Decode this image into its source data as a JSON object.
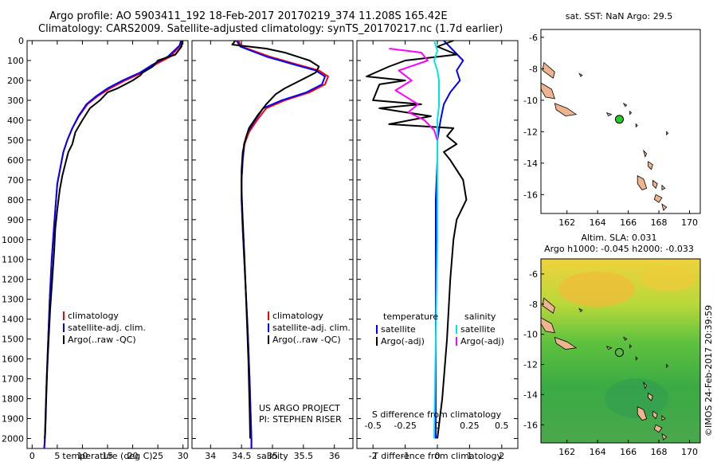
{
  "header": {
    "line1": "Argo profile: AO 5903411_192 18-Feb-2017 20170219_374 11.208S 165.42E",
    "line2": "Climatology: CARS2009. Satellite-adjusted climatology: synTS_20170217.nc (1.7d earlier)"
  },
  "stamp": "©IMOS 24-Feb-2017 20:39:59",
  "colors": {
    "climatology": "#ff0000",
    "satellite": "#0000ff",
    "argo": "#000000",
    "satellite_salinity": "#00e5e5",
    "argo_salinity": "#ff00ff",
    "land": "#eeb38f",
    "float_marker": "#22cc22"
  },
  "chart_data": [
    {
      "type": "line",
      "id": "temperature",
      "xlabel": "temperature (deg C)",
      "xlim": [
        -1,
        31
      ],
      "xticks": [
        "0",
        "5",
        "10",
        "15",
        "20",
        "25",
        "30"
      ],
      "xtick_values": [
        0,
        5,
        10,
        15,
        20,
        25,
        30
      ],
      "ylim": [
        0,
        2050
      ],
      "ytick_values": [
        0,
        100,
        200,
        300,
        400,
        500,
        600,
        700,
        800,
        900,
        1000,
        1100,
        1200,
        1300,
        1400,
        1500,
        1600,
        1700,
        1800,
        1900,
        2000
      ],
      "yticks": [
        "0",
        "100",
        "200",
        "300",
        "400",
        "500",
        "600",
        "700",
        "800",
        "900",
        "1000",
        "1100",
        "1200",
        "1300",
        "1400",
        "1500",
        "1600",
        "1700",
        "1800",
        "1900",
        "2000"
      ],
      "legend": [
        "climatology",
        "satellite-adj. clim.",
        "Argo(..raw -QC)"
      ],
      "series": [
        {
          "name": "climatology",
          "color": "climatology",
          "x": [
            29.8,
            29.5,
            27.5,
            24.5,
            22.0,
            18.5,
            15.5,
            13.0,
            11.0,
            9.3,
            8.0,
            7.0,
            6.2,
            5.6,
            5.0,
            4.7,
            4.4,
            3.9,
            3.5,
            3.2,
            2.9,
            2.7,
            2.6,
            2.5,
            2.4
          ],
          "y": [
            0,
            25,
            80,
            120,
            160,
            200,
            240,
            280,
            320,
            380,
            440,
            500,
            560,
            640,
            720,
            820,
            920,
            1100,
            1300,
            1500,
            1700,
            1850,
            1950,
            2020,
            2050
          ]
        },
        {
          "name": "satellite-adj. clim.",
          "color": "satellite",
          "x": [
            29.6,
            29.3,
            27.0,
            24.0,
            21.5,
            18.0,
            15.0,
            12.7,
            10.8,
            9.2,
            8.0,
            7.0,
            6.2,
            5.6,
            5.0,
            4.7,
            4.4,
            3.9,
            3.5,
            3.2,
            2.9,
            2.7,
            2.6,
            2.5,
            2.4
          ],
          "y": [
            0,
            25,
            80,
            120,
            160,
            200,
            240,
            280,
            320,
            380,
            440,
            500,
            560,
            640,
            720,
            820,
            920,
            1100,
            1300,
            1500,
            1700,
            1850,
            1950,
            2020,
            2050
          ]
        },
        {
          "name": "Argo(..raw -QC)",
          "color": "argo",
          "x": [
            29.9,
            29.7,
            28.5,
            25.0,
            24.0,
            22.0,
            21.5,
            20.0,
            17.0,
            15.0,
            13.5,
            12.5,
            11.5,
            10.0,
            8.6,
            8.0,
            7.2,
            6.8,
            6.0,
            5.5,
            5.0,
            4.6,
            4.4,
            4.0,
            3.6,
            3.3,
            3.0,
            2.8,
            2.7,
            2.6,
            2.5
          ],
          "y": [
            0,
            30,
            70,
            100,
            130,
            160,
            175,
            200,
            240,
            260,
            300,
            320,
            340,
            400,
            460,
            520,
            560,
            600,
            680,
            750,
            850,
            950,
            1050,
            1200,
            1350,
            1500,
            1650,
            1800,
            1900,
            1980,
            2000
          ]
        }
      ]
    },
    {
      "type": "line",
      "id": "salinity",
      "xlabel": "salinity",
      "xlim": [
        33.7,
        36.3
      ],
      "xticks": [
        "34",
        "34.5",
        "35",
        "35.5",
        "36"
      ],
      "xtick_values": [
        34,
        34.5,
        35,
        35.5,
        36
      ],
      "ylim": [
        0,
        2050
      ],
      "legend": [
        "climatology",
        "satellite-adj. clim.",
        "Argo(..raw -QC)"
      ],
      "annotation": [
        "US ARGO PROJECT",
        "PI: STEPHEN RISER"
      ],
      "series": [
        {
          "name": "climatology",
          "color": "climatology",
          "x": [
            34.45,
            34.5,
            34.95,
            35.4,
            35.75,
            35.9,
            35.85,
            35.6,
            35.2,
            34.9,
            34.75,
            34.62,
            34.55,
            34.52,
            34.5,
            34.5,
            34.52,
            34.56,
            34.6,
            34.63,
            34.65,
            34.66,
            34.66
          ],
          "y": [
            0,
            30,
            80,
            120,
            150,
            180,
            220,
            260,
            300,
            340,
            400,
            460,
            520,
            600,
            700,
            800,
            950,
            1200,
            1450,
            1700,
            1900,
            2000,
            2050
          ]
        },
        {
          "name": "satellite-adj. clim.",
          "color": "satellite",
          "x": [
            34.42,
            34.48,
            34.9,
            35.35,
            35.7,
            35.85,
            35.8,
            35.55,
            35.15,
            34.85,
            34.72,
            34.6,
            34.54,
            34.52,
            34.5,
            34.5,
            34.52,
            34.56,
            34.6,
            34.63,
            34.65,
            34.66,
            34.66
          ],
          "y": [
            0,
            30,
            80,
            120,
            150,
            180,
            220,
            260,
            300,
            340,
            400,
            460,
            520,
            600,
            700,
            800,
            950,
            1200,
            1450,
            1700,
            1900,
            2000,
            2050
          ]
        },
        {
          "name": "Argo(..raw -QC)",
          "color": "argo",
          "x": [
            34.4,
            34.35,
            34.9,
            35.2,
            35.6,
            35.75,
            35.7,
            35.45,
            35.2,
            35.05,
            34.9,
            34.75,
            34.62,
            34.56,
            34.52,
            34.5,
            34.5,
            34.52,
            34.55,
            34.58,
            34.61,
            34.63,
            34.64
          ],
          "y": [
            0,
            20,
            40,
            60,
            100,
            130,
            160,
            200,
            240,
            270,
            320,
            380,
            440,
            500,
            560,
            650,
            750,
            900,
            1100,
            1350,
            1600,
            1850,
            2000
          ]
        }
      ]
    },
    {
      "type": "line",
      "id": "difference",
      "xlabel": "T difference from climatology",
      "xlim": [
        -2.5,
        2.5
      ],
      "xticks": [
        "-2",
        "-1",
        "0",
        "1",
        "2"
      ],
      "xtick_values": [
        -2,
        -1,
        0,
        1,
        2
      ],
      "sticks": [
        "-0.5",
        "-0.25",
        "0",
        "0.25",
        "0.5"
      ],
      "stick_values": [
        -2,
        -1,
        0,
        1,
        2
      ],
      "s_label": "S difference from climatology",
      "ylim": [
        0,
        2050
      ],
      "legend_titles": [
        "temperature",
        "salinity"
      ],
      "legend": [
        "satellite",
        "Argo(-adj)",
        "satellite",
        "Argo(-adj)"
      ],
      "series": [
        {
          "name": "satellite",
          "quantity": "temperature",
          "color": "satellite",
          "x": [
            0.2,
            0.5,
            0.8,
            0.6,
            0.7,
            0.4,
            0.2,
            0.1,
            0.0,
            0.0,
            -0.05,
            -0.05,
            -0.05,
            -0.05,
            -0.05
          ],
          "y": [
            0,
            50,
            100,
            150,
            200,
            260,
            320,
            400,
            500,
            600,
            800,
            1000,
            1300,
            1600,
            2000
          ]
        },
        {
          "name": "Argo(-adj)",
          "quantity": "temperature",
          "color": "argo",
          "x": [
            0.5,
            0.0,
            0.6,
            -1.0,
            -1.5,
            -2.2,
            -1.0,
            -1.8,
            -2.0,
            -0.5,
            -1.8,
            -0.2,
            -1.5,
            0.5,
            0.3,
            0.6,
            0.2,
            0.4,
            0.8,
            0.9,
            0.6,
            0.5,
            0.4,
            0.3,
            0.15,
            0.0
          ],
          "y": [
            0,
            30,
            70,
            100,
            130,
            180,
            200,
            220,
            300,
            320,
            340,
            380,
            420,
            440,
            480,
            520,
            560,
            600,
            700,
            800,
            900,
            1000,
            1200,
            1500,
            1800,
            2000
          ]
        },
        {
          "name": "satellite",
          "quantity": "salinity",
          "color": "satellite_salinity",
          "x": [
            -0.1,
            0.0,
            -0.1,
            0.0,
            0.05,
            0.05,
            0.05,
            0.0,
            0.0,
            0.0,
            -0.05,
            -0.1
          ],
          "y": [
            0,
            50,
            100,
            150,
            200,
            260,
            330,
            400,
            600,
            1000,
            1500,
            2000
          ]
        },
        {
          "name": "Argo(-adj)",
          "quantity": "salinity",
          "color": "argo_salinity",
          "x": [
            -1.5,
            -0.5,
            -0.3,
            -1.2,
            -0.8,
            -1.3,
            -0.6,
            -0.9,
            -0.4,
            -0.1,
            0.0
          ],
          "y": [
            40,
            60,
            100,
            150,
            200,
            250,
            320,
            360,
            400,
            450,
            500
          ]
        }
      ]
    },
    {
      "type": "scatter",
      "id": "sst_map",
      "title": "sat. SST: NaN Argo: 29.5",
      "xlim": [
        160.3,
        170.7
      ],
      "ylim": [
        -17.2,
        -5.5
      ],
      "xticks": [
        "162",
        "164",
        "166",
        "168",
        "170"
      ],
      "xtick_values": [
        162,
        164,
        166,
        168,
        170
      ],
      "yticks": [
        "-6",
        "-8",
        "-10",
        "-12",
        "-14",
        "-16"
      ],
      "ytick_values": [
        -6,
        -8,
        -10,
        -12,
        -14,
        -16
      ],
      "float_position": {
        "lon": 165.42,
        "lat": -11.208
      }
    },
    {
      "type": "heatmap",
      "id": "sla_map",
      "title": "Altim. SLA: 0.031",
      "subtitle": "Argo h1000: -0.045 h2000: -0.033",
      "xlim": [
        160.3,
        170.7
      ],
      "ylim": [
        -17.2,
        -5.0
      ],
      "xticks": [
        "162",
        "164",
        "166",
        "168",
        "170"
      ],
      "xtick_values": [
        162,
        164,
        166,
        168,
        170
      ],
      "yticks": [
        "-6",
        "-8",
        "-10",
        "-12",
        "-14",
        "-16"
      ],
      "ytick_values": [
        -6,
        -8,
        -10,
        -12,
        -14,
        -16
      ],
      "float_position": {
        "lon": 165.42,
        "lat": -11.208
      }
    }
  ]
}
